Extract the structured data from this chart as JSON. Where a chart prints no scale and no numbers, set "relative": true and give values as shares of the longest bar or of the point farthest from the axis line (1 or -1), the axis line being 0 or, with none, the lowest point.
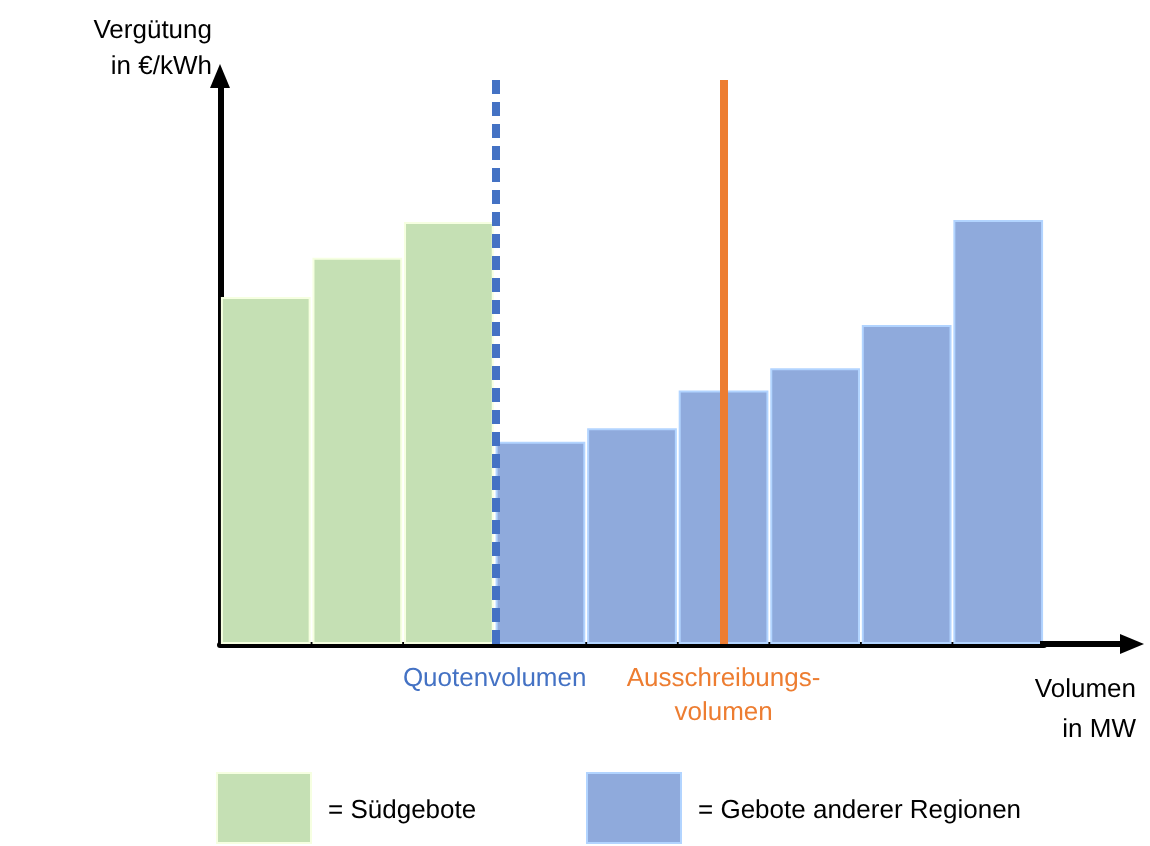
{
  "chart_data": {
    "type": "bar",
    "relative": true,
    "xlabel": "Volumen\nin MW",
    "categories": [
      null,
      null,
      null,
      null,
      null,
      null,
      null,
      null,
      null
    ],
    "grid": false,
    "values": [
      0.818,
      0.911,
      0.995,
      0.477,
      0.509,
      0.598,
      0.65,
      0.752,
      1
    ],
    "colors": [
      "#c5e0b4",
      "#c5e0b4",
      "#c5e0b4",
      "#8faadc",
      "#8faadc",
      "#8faadc",
      "#8faadc",
      "#8faadc",
      "#8faadc"
    ],
    "annotations": [
      "Vergütung\nin €/kWh",
      "= Südgebote",
      "= Gebote anderer Regionen"
    ],
    "ref_lines": [
      {
        "axis": "x",
        "label": "Quotenvolumen",
        "color": "#4472c4",
        "line_style": "dashed"
      },
      {
        "axis": "x",
        "label": "Ausschreibungs-\nvolumen",
        "color": "#ed7d31",
        "line_style": "solid"
      }
    ]
  }
}
